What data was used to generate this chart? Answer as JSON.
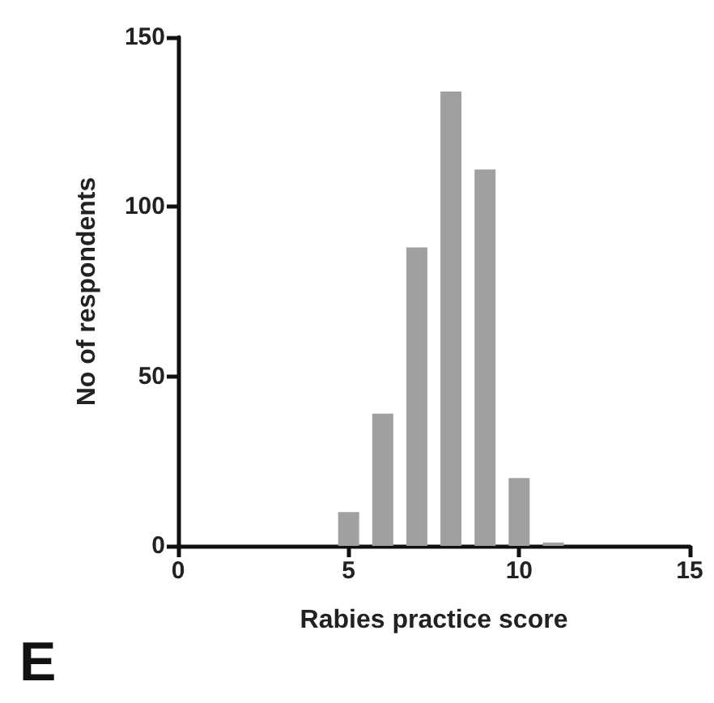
{
  "chart_data": {
    "type": "bar",
    "xlabel": "Rabies practice score",
    "ylabel": "No of respondents",
    "x": [
      5,
      6,
      7,
      8,
      9,
      10,
      11
    ],
    "values": [
      10,
      39,
      88,
      134,
      111,
      20,
      1
    ],
    "color": "#a0a0a0",
    "xlim": [
      0,
      15
    ],
    "xticks": [
      0,
      5,
      10,
      15
    ],
    "ylim": [
      0,
      150
    ],
    "yticks": [
      0,
      50,
      100,
      150
    ],
    "grid": false,
    "annotations": [
      "E"
    ]
  }
}
